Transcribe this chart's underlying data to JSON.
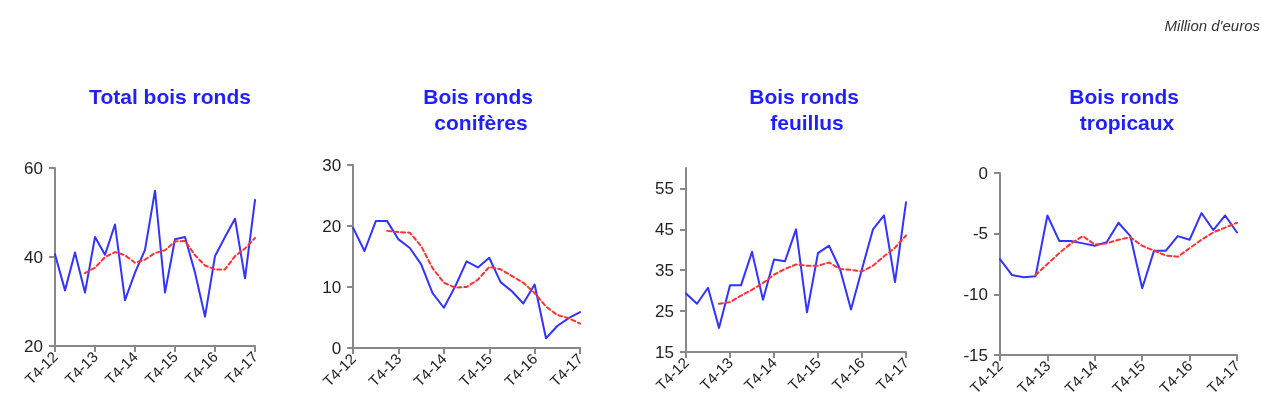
{
  "chart_data": [
    {
      "type": "line",
      "title": "Total bois ronds",
      "categories": [
        "T4-12",
        null,
        null,
        null,
        "T4-13",
        null,
        null,
        null,
        "T4-14",
        null,
        null,
        null,
        "T4-15",
        null,
        null,
        null,
        "T4-16",
        null,
        null,
        null,
        "T4-17"
      ],
      "marker": "none",
      "ylim": [
        20,
        60
      ],
      "yticks": [
        20,
        40,
        60
      ],
      "series": [
        {
          "color": "#3333ff",
          "line_style": "solid",
          "values": [
            40.6,
            32.5,
            41,
            32,
            44.5,
            40.5,
            47.3,
            30.3,
            36.5,
            41.6,
            54.9,
            32,
            44,
            44.5,
            36.5,
            26.6,
            40.2,
            44.5,
            48.6,
            35.2,
            52.8
          ]
        },
        {
          "color": "#ff3333",
          "line_style": "dashed",
          "values": [
            null,
            null,
            null,
            36.4,
            37.6,
            40,
            41.1,
            40.4,
            38.7,
            39.4,
            40.9,
            41.5,
            43.5,
            43.6,
            40.4,
            38.1,
            37.2,
            37.2,
            40.2,
            41.9,
            44.3
          ]
        }
      ]
    },
    {
      "type": "line",
      "title": "Bois ronds conifères",
      "categories": [
        "T4-12",
        null,
        null,
        null,
        "T4-13",
        null,
        null,
        null,
        "T4-14",
        null,
        null,
        null,
        "T4-15",
        null,
        null,
        null,
        "T4-16",
        null,
        null,
        null,
        "T4-17"
      ],
      "marker": "none",
      "ylim": [
        0,
        30
      ],
      "yticks": [
        0,
        10,
        20,
        30
      ],
      "series": [
        {
          "color": "#3333ff",
          "line_style": "solid",
          "values": [
            19.7,
            15.9,
            20.8,
            20.8,
            17.8,
            16.4,
            13.7,
            9,
            6.6,
            10.1,
            14.2,
            13.2,
            14.8,
            10.8,
            9.3,
            7.3,
            10.4,
            1.6,
            3.6,
            4.9,
            5.9
          ]
        },
        {
          "color": "#ff3333",
          "line_style": "dashed",
          "values": [
            null,
            null,
            null,
            19.2,
            19,
            18.9,
            16.7,
            13.1,
            10.7,
            9.9,
            10,
            11.2,
            13.3,
            12.9,
            11.8,
            10.7,
            9,
            6.8,
            5.4,
            4.9,
            4
          ]
        }
      ]
    },
    {
      "type": "line",
      "title": "Bois ronds feuillus",
      "categories": [
        "T4-12",
        null,
        null,
        null,
        "T4-13",
        null,
        null,
        null,
        "T4-14",
        null,
        null,
        null,
        "T4-15",
        null,
        null,
        null,
        "T4-16",
        null,
        null,
        null,
        "T4-17"
      ],
      "marker": "none",
      "ylim": [
        15,
        60
      ],
      "yticks": [
        15,
        25,
        35,
        45,
        55
      ],
      "series": [
        {
          "color": "#3333ff",
          "line_style": "solid",
          "values": [
            29.3,
            26.8,
            30.7,
            20.9,
            31.3,
            31.3,
            39.5,
            27.8,
            37.6,
            37.2,
            45,
            24.7,
            39.2,
            41,
            35.3,
            25.4,
            35.3,
            45,
            48.4,
            32.1,
            51.6
          ]
        },
        {
          "color": "#ff3333",
          "line_style": "dashed",
          "values": [
            null,
            null,
            null,
            26.8,
            27.2,
            28.8,
            30.2,
            31.9,
            33.9,
            35.3,
            36.4,
            36.1,
            36.1,
            36.9,
            35.3,
            35.1,
            34.7,
            36.1,
            38.4,
            40.5,
            43.5
          ]
        }
      ]
    },
    {
      "type": "line",
      "title": "Bois ronds tropicaux",
      "annotations": [
        "Million d'euros"
      ],
      "categories": [
        "T4-12",
        null,
        null,
        null,
        "T4-13",
        null,
        null,
        null,
        "T4-14",
        null,
        null,
        null,
        "T4-15",
        null,
        null,
        null,
        "T4-16",
        null,
        null,
        null,
        "T4-17"
      ],
      "marker": "none",
      "ylim": [
        -15,
        0
      ],
      "yticks": [
        -15,
        -10,
        -5,
        0
      ],
      "series": [
        {
          "color": "#3333ff",
          "line_style": "solid",
          "values": [
            -7.1,
            -8.4,
            -8.6,
            -8.5,
            -3.5,
            -5.6,
            -5.6,
            -5.8,
            -6,
            -5.7,
            -4.1,
            -5.2,
            -9.5,
            -6.4,
            -6.4,
            -5.2,
            -5.5,
            -3.3,
            -4.7,
            -3.5,
            -4.9
          ]
        },
        {
          "color": "#ff3333",
          "line_style": "dashed",
          "values": [
            null,
            null,
            null,
            -8.4,
            -7.5,
            -6.6,
            -5.8,
            -5.2,
            -5.9,
            -5.8,
            -5.5,
            -5.3,
            -6,
            -6.4,
            -6.8,
            -6.9,
            -6.2,
            -5.5,
            -4.9,
            -4.5,
            -4.1
          ]
        }
      ]
    }
  ]
}
